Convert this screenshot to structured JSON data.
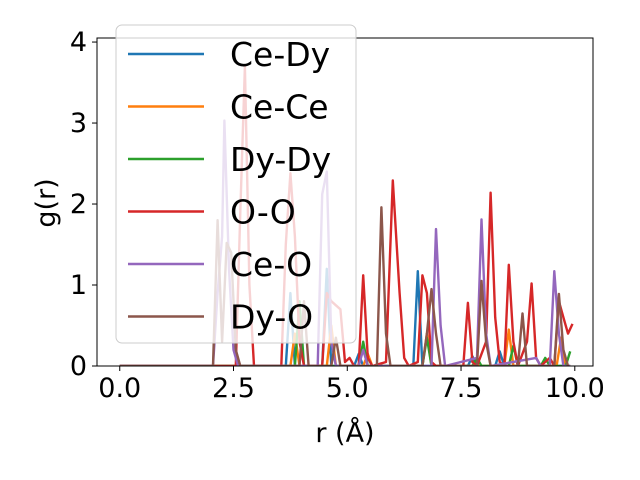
{
  "chart_data": {
    "type": "line",
    "title": "",
    "xlabel": "r (Å)",
    "ylabel": "g(r)",
    "xlim": [
      -0.5,
      10.4
    ],
    "ylim": [
      0,
      4.05
    ],
    "xticks": [
      0.0,
      2.5,
      5.0,
      7.5,
      10.0
    ],
    "xtick_labels": [
      "0.0",
      "2.5",
      "5.0",
      "7.5",
      "10.0"
    ],
    "yticks": [
      0,
      1,
      2,
      3,
      4
    ],
    "ytick_labels": [
      "0",
      "1",
      "2",
      "3",
      "4"
    ],
    "grid": false,
    "legend_position": "upper-left",
    "series": [
      {
        "name": "Ce-Dy",
        "color": "#1f77b4",
        "points": [
          [
            0,
            0
          ],
          [
            3.65,
            0
          ],
          [
            3.75,
            0.9
          ],
          [
            3.85,
            0
          ],
          [
            4.45,
            0
          ],
          [
            4.55,
            1.2
          ],
          [
            4.65,
            0
          ],
          [
            5.15,
            0
          ],
          [
            5.25,
            0.15
          ],
          [
            5.35,
            0
          ],
          [
            6.45,
            0
          ],
          [
            6.55,
            1.17
          ],
          [
            6.65,
            0
          ],
          [
            7.65,
            0
          ],
          [
            7.75,
            0.12
          ],
          [
            7.85,
            0
          ],
          [
            8.25,
            0
          ],
          [
            8.35,
            0.18
          ],
          [
            8.45,
            0
          ],
          [
            9.9,
            0
          ]
        ]
      },
      {
        "name": "Ce-Ce",
        "color": "#ff7f0e",
        "points": [
          [
            0,
            0
          ],
          [
            3.75,
            0
          ],
          [
            3.85,
            0.4
          ],
          [
            3.95,
            0
          ],
          [
            4.55,
            0
          ],
          [
            4.65,
            0.5
          ],
          [
            4.75,
            0
          ],
          [
            5.35,
            0
          ],
          [
            5.45,
            0.15
          ],
          [
            5.55,
            0
          ],
          [
            6.65,
            0
          ],
          [
            6.75,
            0.4
          ],
          [
            6.85,
            0
          ],
          [
            8.45,
            0
          ],
          [
            8.55,
            0.45
          ],
          [
            8.65,
            0
          ],
          [
            9.6,
            0
          ],
          [
            9.7,
            0.35
          ],
          [
            9.8,
            0
          ],
          [
            9.9,
            0
          ]
        ]
      },
      {
        "name": "Dy-Dy",
        "color": "#2ca02c",
        "points": [
          [
            0,
            0
          ],
          [
            3.85,
            0
          ],
          [
            3.95,
            0.8
          ],
          [
            4.05,
            0
          ],
          [
            5.25,
            0
          ],
          [
            5.35,
            0.3
          ],
          [
            5.45,
            0
          ],
          [
            6.65,
            0
          ],
          [
            6.75,
            0.35
          ],
          [
            6.85,
            0
          ],
          [
            7.75,
            0
          ],
          [
            7.85,
            0.1
          ],
          [
            7.95,
            0
          ],
          [
            8.55,
            0
          ],
          [
            8.65,
            0.25
          ],
          [
            8.75,
            0
          ],
          [
            9.25,
            0
          ],
          [
            9.35,
            0.1
          ],
          [
            9.45,
            0
          ],
          [
            9.8,
            0
          ],
          [
            9.9,
            0.18
          ]
        ]
      },
      {
        "name": "O-O",
        "color": "#d62728",
        "points": [
          [
            0,
            0
          ],
          [
            2.55,
            0
          ],
          [
            2.65,
            1.9
          ],
          [
            2.75,
            3.7
          ],
          [
            2.85,
            1.0
          ],
          [
            2.95,
            0
          ],
          [
            3.55,
            0
          ],
          [
            3.65,
            1.5
          ],
          [
            3.75,
            2.38
          ],
          [
            3.85,
            1.6
          ],
          [
            3.95,
            0.3
          ],
          [
            4.05,
            0
          ],
          [
            4.45,
            0
          ],
          [
            4.55,
            0.9
          ],
          [
            4.65,
            0.8
          ],
          [
            4.75,
            0.75
          ],
          [
            4.85,
            0.7
          ],
          [
            4.95,
            0.05
          ],
          [
            5.05,
            0.1
          ],
          [
            5.15,
            0
          ],
          [
            5.25,
            0
          ],
          [
            5.35,
            1.12
          ],
          [
            5.45,
            0.1
          ],
          [
            5.55,
            0
          ],
          [
            5.85,
            0.05
          ],
          [
            6.0,
            2.29
          ],
          [
            6.15,
            0.9
          ],
          [
            6.25,
            0.1
          ],
          [
            6.35,
            0
          ],
          [
            6.55,
            0.05
          ],
          [
            6.65,
            1.12
          ],
          [
            6.75,
            0.9
          ],
          [
            6.85,
            0.05
          ],
          [
            6.95,
            0
          ],
          [
            7.55,
            0
          ],
          [
            7.65,
            0.78
          ],
          [
            7.75,
            0.05
          ],
          [
            7.85,
            0
          ],
          [
            8.05,
            0.3
          ],
          [
            8.15,
            2.14
          ],
          [
            8.25,
            0.6
          ],
          [
            8.35,
            0.05
          ],
          [
            8.45,
            0
          ],
          [
            8.55,
            1.25
          ],
          [
            8.65,
            0.3
          ],
          [
            8.75,
            0
          ],
          [
            8.95,
            0.3
          ],
          [
            9.05,
            1.02
          ],
          [
            9.15,
            0.1
          ],
          [
            9.25,
            0
          ],
          [
            9.45,
            0.1
          ],
          [
            9.55,
            0
          ],
          [
            9.65,
            0.8
          ],
          [
            9.75,
            0.6
          ],
          [
            9.85,
            0.4
          ],
          [
            9.95,
            0.52
          ]
        ]
      },
      {
        "name": "Ce-O",
        "color": "#9467bd",
        "points": [
          [
            0,
            0
          ],
          [
            2.05,
            0
          ],
          [
            2.15,
            0.9
          ],
          [
            2.25,
            1.6
          ],
          [
            2.3,
            3.03
          ],
          [
            2.4,
            1.2
          ],
          [
            2.5,
            0.2
          ],
          [
            2.6,
            0
          ],
          [
            4.35,
            0
          ],
          [
            4.45,
            2.12
          ],
          [
            4.55,
            2.4
          ],
          [
            4.65,
            0.3
          ],
          [
            4.75,
            0
          ],
          [
            5.25,
            0
          ],
          [
            5.35,
            0.2
          ],
          [
            5.45,
            0
          ],
          [
            6.85,
            0
          ],
          [
            6.95,
            1.69
          ],
          [
            7.05,
            0.5
          ],
          [
            7.15,
            0
          ],
          [
            7.85,
            0.1
          ],
          [
            7.95,
            1.81
          ],
          [
            8.05,
            0.4
          ],
          [
            8.15,
            0
          ],
          [
            9.15,
            0.1
          ],
          [
            9.25,
            0
          ],
          [
            9.45,
            0
          ],
          [
            9.55,
            1.17
          ],
          [
            9.65,
            0.4
          ],
          [
            9.75,
            0
          ],
          [
            9.9,
            0
          ]
        ]
      },
      {
        "name": "Dy-O",
        "color": "#8c564b",
        "points": [
          [
            0,
            0
          ],
          [
            2.05,
            0
          ],
          [
            2.15,
            1.8
          ],
          [
            2.25,
            0.3
          ],
          [
            2.35,
            1.52
          ],
          [
            2.45,
            1.4
          ],
          [
            2.55,
            0.2
          ],
          [
            2.65,
            0
          ],
          [
            3.95,
            0
          ],
          [
            4.05,
            0.8
          ],
          [
            4.15,
            0
          ],
          [
            4.65,
            0
          ],
          [
            4.75,
            0.35
          ],
          [
            4.85,
            0
          ],
          [
            5.65,
            0
          ],
          [
            5.75,
            1.96
          ],
          [
            5.85,
            0.4
          ],
          [
            5.95,
            0
          ],
          [
            6.65,
            0
          ],
          [
            6.75,
            0.4
          ],
          [
            6.85,
            0.95
          ],
          [
            6.95,
            0.4
          ],
          [
            7.05,
            0
          ],
          [
            7.85,
            0
          ],
          [
            7.95,
            1.05
          ],
          [
            8.05,
            0.3
          ],
          [
            8.15,
            0
          ],
          [
            8.75,
            0
          ],
          [
            8.85,
            0.65
          ],
          [
            8.95,
            0
          ],
          [
            9.55,
            0
          ],
          [
            9.65,
            0.89
          ],
          [
            9.75,
            0.2
          ],
          [
            9.85,
            0
          ]
        ]
      }
    ]
  }
}
